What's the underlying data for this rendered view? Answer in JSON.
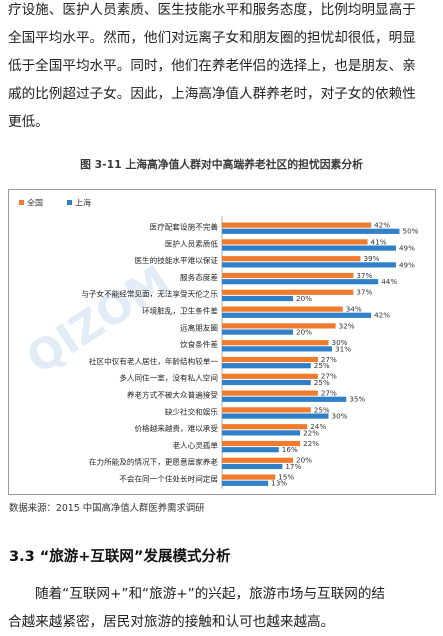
{
  "intro_paragraph": {
    "lines": [
      "疗设施、医护人员素质、医生技能水平和服务态度，比例均明显高于",
      "全国平均水平。然而，他们对远离子女和朋友圈的担忧却很低，明显",
      "低于全国平均水平。同时，他们在养老伴侣的选择上，也是朋友、亲",
      "戚的比例超过子女。因此，上海高净值人群养老时，对子女的依赖性",
      "更低。"
    ]
  },
  "figure_title": "图 3-11  上海高净值人群对中高端养老社区的担忧因素分析",
  "colors": {
    "national": "#f07b2d",
    "shanghai": "#2f80c8"
  },
  "chart_data": {
    "type": "bar",
    "orientation": "horizontal",
    "legend": {
      "position": "top-left",
      "entries": [
        "全国",
        "上海"
      ]
    },
    "categories": [
      "医疗配套设施不完善",
      "医护人员素质低",
      "医生的技能水平难以保证",
      "服务态度差",
      "与子女不能经常见面，无法享受天伦之乐",
      "环境脏乱，卫生条件差",
      "远离朋友圈",
      "饮食条件差",
      "社区中仅有老人居住，年龄结构较单一",
      "多人同住一室，没有私人空间",
      "养老方式不被大众普遍接受",
      "缺少社交和娱乐",
      "价格越来越贵，难以承受",
      "老人心灵孤单",
      "在力所能及的情况下，更愿意居家养老",
      "不会在同一个住处长时间定居"
    ],
    "series": [
      {
        "name": "全国",
        "values": [
          42,
          41,
          39,
          37,
          37,
          34,
          32,
          30,
          27,
          27,
          27,
          25,
          24,
          22,
          20,
          15
        ]
      },
      {
        "name": "上海",
        "values": [
          50,
          49,
          49,
          44,
          20,
          42,
          20,
          31,
          25,
          25,
          35,
          30,
          22,
          16,
          17,
          13
        ]
      }
    ],
    "value_suffix": "%",
    "xlim": [
      0,
      55
    ],
    "grid": false
  },
  "watermark": "QIZOM",
  "source": "数据来源：2015 中国高净值人群医养需求调研",
  "section_heading": "3.3  “旅游+互联网”发展模式分析",
  "closing_paragraph": {
    "lines": [
      "随着“互联网+”和“旅游+”的兴起，旅游市场与互联网的结",
      "合越来越紧密，居民对旅游的接触和认可也越来越高。"
    ]
  }
}
